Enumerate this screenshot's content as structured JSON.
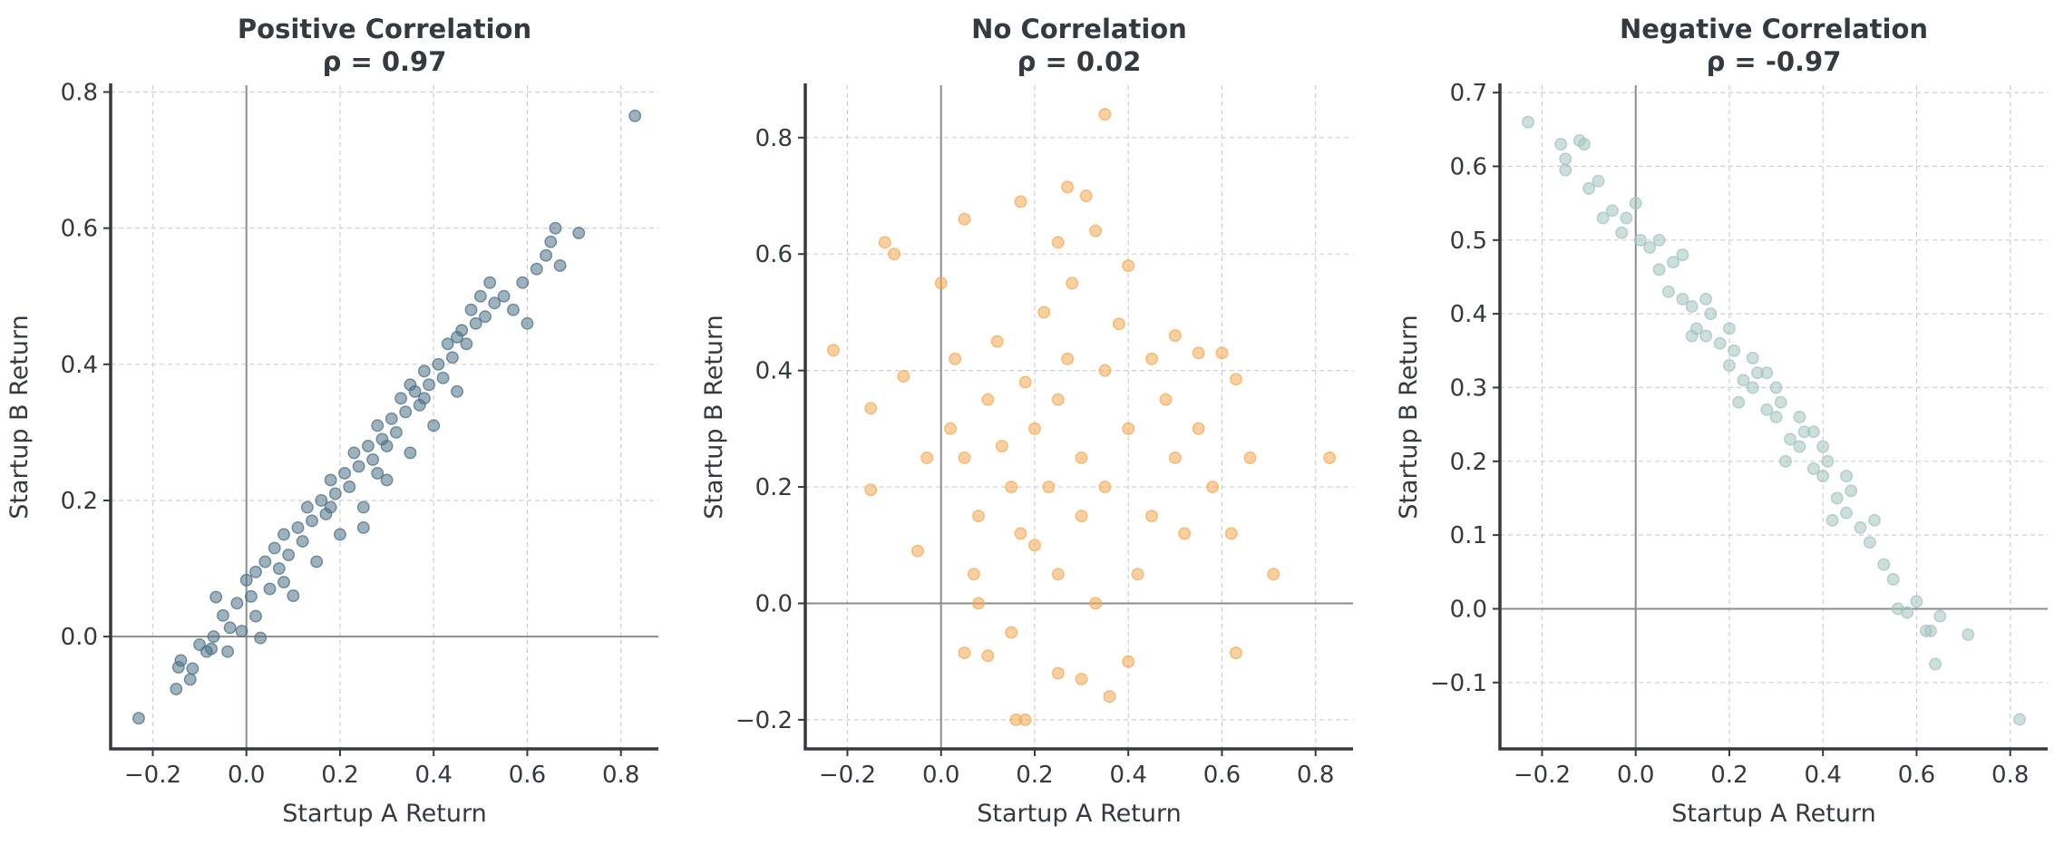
{
  "chart_data": [
    {
      "type": "scatter",
      "title": "Positive Correlation\nρ = 0.97",
      "xlabel": "Startup A Return",
      "ylabel": "Startup B Return",
      "xlim": [
        -0.29,
        0.88
      ],
      "ylim": [
        -0.165,
        0.81
      ],
      "xticks": [
        -0.2,
        0.0,
        0.2,
        0.4,
        0.6,
        0.8
      ],
      "xtick_labels": [
        "−0.2",
        "0.0",
        "0.2",
        "0.4",
        "0.6",
        "0.8"
      ],
      "yticks": [
        0.0,
        0.2,
        0.4,
        0.6,
        0.8
      ],
      "ytick_labels": [
        "0.0",
        "0.2",
        "0.4",
        "0.6",
        "0.8"
      ],
      "grid": true,
      "color": "#4e7386",
      "series": [
        {
          "points": [
            [
              -0.23,
              -0.12
            ],
            [
              -0.15,
              -0.077
            ],
            [
              -0.145,
              -0.045
            ],
            [
              -0.14,
              -0.035
            ],
            [
              -0.12,
              -0.063
            ],
            [
              -0.115,
              -0.047
            ],
            [
              -0.1,
              -0.012
            ],
            [
              -0.085,
              -0.022
            ],
            [
              -0.075,
              -0.018
            ],
            [
              -0.07,
              -0.0
            ],
            [
              -0.065,
              0.058
            ],
            [
              -0.05,
              0.031
            ],
            [
              -0.04,
              -0.022
            ],
            [
              -0.035,
              0.013
            ],
            [
              -0.02,
              0.049
            ],
            [
              -0.01,
              0.008
            ],
            [
              0.0,
              0.083
            ],
            [
              0.01,
              0.059
            ],
            [
              0.02,
              0.095
            ],
            [
              0.03,
              -0.002
            ],
            [
              0.04,
              0.11
            ],
            [
              0.05,
              0.07
            ],
            [
              0.06,
              0.13
            ],
            [
              0.07,
              0.1
            ],
            [
              0.08,
              0.15
            ],
            [
              0.09,
              0.12
            ],
            [
              0.1,
              0.06
            ],
            [
              0.11,
              0.16
            ],
            [
              0.12,
              0.14
            ],
            [
              0.13,
              0.19
            ],
            [
              0.14,
              0.17
            ],
            [
              0.15,
              0.11
            ],
            [
              0.16,
              0.2
            ],
            [
              0.17,
              0.18
            ],
            [
              0.18,
              0.23
            ],
            [
              0.19,
              0.21
            ],
            [
              0.2,
              0.15
            ],
            [
              0.21,
              0.24
            ],
            [
              0.22,
              0.22
            ],
            [
              0.23,
              0.27
            ],
            [
              0.24,
              0.25
            ],
            [
              0.25,
              0.19
            ],
            [
              0.26,
              0.28
            ],
            [
              0.27,
              0.26
            ],
            [
              0.28,
              0.31
            ],
            [
              0.29,
              0.29
            ],
            [
              0.3,
              0.23
            ],
            [
              0.31,
              0.32
            ],
            [
              0.32,
              0.3
            ],
            [
              0.33,
              0.35
            ],
            [
              0.34,
              0.33
            ],
            [
              0.35,
              0.27
            ],
            [
              0.36,
              0.36
            ],
            [
              0.37,
              0.34
            ],
            [
              0.38,
              0.39
            ],
            [
              0.39,
              0.37
            ],
            [
              0.4,
              0.31
            ],
            [
              0.41,
              0.4
            ],
            [
              0.42,
              0.38
            ],
            [
              0.43,
              0.43
            ],
            [
              0.44,
              0.41
            ],
            [
              0.45,
              0.36
            ],
            [
              0.46,
              0.45
            ],
            [
              0.47,
              0.43
            ],
            [
              0.48,
              0.48
            ],
            [
              0.49,
              0.46
            ],
            [
              0.5,
              0.5
            ],
            [
              0.51,
              0.47
            ],
            [
              0.52,
              0.52
            ],
            [
              0.53,
              0.49
            ],
            [
              0.55,
              0.5
            ],
            [
              0.57,
              0.48
            ],
            [
              0.59,
              0.52
            ],
            [
              0.6,
              0.46
            ],
            [
              0.62,
              0.54
            ],
            [
              0.64,
              0.56
            ],
            [
              0.65,
              0.58
            ],
            [
              0.66,
              0.6
            ],
            [
              0.67,
              0.545
            ],
            [
              0.71,
              0.593
            ],
            [
              0.83,
              0.765
            ],
            [
              0.25,
              0.16
            ],
            [
              0.35,
              0.37
            ],
            [
              0.45,
              0.44
            ],
            [
              0.3,
              0.28
            ],
            [
              0.18,
              0.19
            ],
            [
              0.08,
              0.08
            ],
            [
              0.02,
              0.03
            ],
            [
              0.28,
              0.24
            ],
            [
              0.38,
              0.35
            ]
          ]
        }
      ]
    },
    {
      "type": "scatter",
      "title": "No Correlation\nρ = 0.02",
      "xlabel": "Startup A Return",
      "ylabel": "Startup B Return",
      "xlim": [
        -0.29,
        0.88
      ],
      "ylim": [
        -0.25,
        0.89
      ],
      "xticks": [
        -0.2,
        0.0,
        0.2,
        0.4,
        0.6,
        0.8
      ],
      "xtick_labels": [
        "−0.2",
        "0.0",
        "0.2",
        "0.4",
        "0.6",
        "0.8"
      ],
      "yticks": [
        -0.2,
        0.0,
        0.2,
        0.4,
        0.6,
        0.8
      ],
      "ytick_labels": [
        "−0.2",
        "0.0",
        "0.2",
        "0.4",
        "0.6",
        "0.8"
      ],
      "grid": true,
      "color": "#f5a953",
      "series": [
        {
          "points": [
            [
              -0.23,
              0.435
            ],
            [
              -0.15,
              0.335
            ],
            [
              -0.15,
              0.195
            ],
            [
              -0.12,
              0.62
            ],
            [
              -0.1,
              0.6
            ],
            [
              -0.08,
              0.39
            ],
            [
              -0.05,
              0.09
            ],
            [
              -0.03,
              0.25
            ],
            [
              0.0,
              0.55
            ],
            [
              0.05,
              0.66
            ],
            [
              0.17,
              0.69
            ],
            [
              0.31,
              0.7
            ],
            [
              0.27,
              0.715
            ],
            [
              0.35,
              0.84
            ],
            [
              0.33,
              0.64
            ],
            [
              0.25,
              0.62
            ],
            [
              0.4,
              0.58
            ],
            [
              0.5,
              0.46
            ],
            [
              0.55,
              0.43
            ],
            [
              0.6,
              0.43
            ],
            [
              0.63,
              0.385
            ],
            [
              0.66,
              0.25
            ],
            [
              0.71,
              0.05
            ],
            [
              0.83,
              0.25
            ],
            [
              0.63,
              -0.085
            ],
            [
              0.3,
              -0.13
            ],
            [
              0.36,
              -0.16
            ],
            [
              0.4,
              -0.1
            ],
            [
              0.25,
              -0.12
            ],
            [
              0.18,
              -0.2
            ],
            [
              0.16,
              -0.2
            ],
            [
              0.05,
              -0.085
            ],
            [
              0.1,
              -0.09
            ],
            [
              0.08,
              0.0
            ],
            [
              0.15,
              -0.05
            ],
            [
              0.2,
              0.3
            ],
            [
              0.25,
              0.35
            ],
            [
              0.3,
              0.25
            ],
            [
              0.35,
              0.2
            ],
            [
              0.15,
              0.2
            ],
            [
              0.1,
              0.35
            ],
            [
              0.05,
              0.25
            ],
            [
              0.4,
              0.3
            ],
            [
              0.45,
              0.15
            ],
            [
              0.5,
              0.25
            ],
            [
              0.55,
              0.3
            ],
            [
              0.2,
              0.1
            ],
            [
              0.25,
              0.05
            ],
            [
              0.3,
              0.15
            ],
            [
              0.35,
              0.4
            ],
            [
              0.12,
              0.45
            ],
            [
              0.22,
              0.5
            ],
            [
              0.28,
              0.55
            ],
            [
              0.18,
              0.38
            ],
            [
              0.08,
              0.15
            ],
            [
              0.02,
              0.3
            ],
            [
              0.45,
              0.42
            ],
            [
              0.52,
              0.12
            ],
            [
              0.58,
              0.2
            ],
            [
              0.42,
              0.05
            ],
            [
              0.33,
              0.0
            ],
            [
              0.23,
              0.2
            ],
            [
              0.13,
              0.27
            ],
            [
              0.03,
              0.42
            ],
            [
              0.38,
              0.48
            ],
            [
              0.48,
              0.35
            ],
            [
              0.27,
              0.42
            ],
            [
              0.17,
              0.12
            ],
            [
              0.07,
              0.05
            ],
            [
              0.62,
              0.12
            ]
          ]
        }
      ]
    },
    {
      "type": "scatter",
      "title": "Negative Correlation\nρ = -0.97",
      "xlabel": "Startup A Return",
      "ylabel": "Startup B Return",
      "xlim": [
        -0.29,
        0.88
      ],
      "ylim": [
        -0.19,
        0.71
      ],
      "xticks": [
        -0.2,
        0.0,
        0.2,
        0.4,
        0.6,
        0.8
      ],
      "xtick_labels": [
        "−0.2",
        "0.0",
        "0.2",
        "0.4",
        "0.6",
        "0.8"
      ],
      "yticks": [
        -0.1,
        0.0,
        0.1,
        0.2,
        0.3,
        0.4,
        0.5,
        0.6,
        0.7
      ],
      "ytick_labels": [
        "−0.1",
        "0.0",
        "0.1",
        "0.2",
        "0.3",
        "0.4",
        "0.5",
        "0.6",
        "0.7"
      ],
      "grid": true,
      "color": "#a3c4bf",
      "series": [
        {
          "points": [
            [
              -0.23,
              0.66
            ],
            [
              -0.16,
              0.63
            ],
            [
              -0.15,
              0.61
            ],
            [
              -0.15,
              0.595
            ],
            [
              -0.12,
              0.635
            ],
            [
              -0.11,
              0.63
            ],
            [
              -0.1,
              0.57
            ],
            [
              -0.08,
              0.58
            ],
            [
              -0.07,
              0.53
            ],
            [
              -0.05,
              0.54
            ],
            [
              -0.03,
              0.51
            ],
            [
              -0.02,
              0.53
            ],
            [
              0.0,
              0.55
            ],
            [
              0.01,
              0.5
            ],
            [
              0.03,
              0.49
            ],
            [
              0.05,
              0.46
            ],
            [
              0.07,
              0.43
            ],
            [
              0.08,
              0.47
            ],
            [
              0.1,
              0.42
            ],
            [
              0.12,
              0.41
            ],
            [
              0.13,
              0.38
            ],
            [
              0.15,
              0.37
            ],
            [
              0.16,
              0.4
            ],
            [
              0.18,
              0.36
            ],
            [
              0.2,
              0.33
            ],
            [
              0.21,
              0.35
            ],
            [
              0.23,
              0.31
            ],
            [
              0.25,
              0.3
            ],
            [
              0.26,
              0.32
            ],
            [
              0.28,
              0.27
            ],
            [
              0.3,
              0.26
            ],
            [
              0.31,
              0.28
            ],
            [
              0.33,
              0.23
            ],
            [
              0.35,
              0.22
            ],
            [
              0.36,
              0.24
            ],
            [
              0.38,
              0.19
            ],
            [
              0.4,
              0.18
            ],
            [
              0.41,
              0.2
            ],
            [
              0.43,
              0.15
            ],
            [
              0.45,
              0.13
            ],
            [
              0.46,
              0.16
            ],
            [
              0.48,
              0.11
            ],
            [
              0.5,
              0.09
            ],
            [
              0.51,
              0.12
            ],
            [
              0.53,
              0.06
            ],
            [
              0.55,
              0.04
            ],
            [
              0.56,
              0.0
            ],
            [
              0.58,
              -0.005
            ],
            [
              0.6,
              0.01
            ],
            [
              0.62,
              -0.03
            ],
            [
              0.63,
              -0.03
            ],
            [
              0.64,
              -0.075
            ],
            [
              0.65,
              -0.01
            ],
            [
              0.71,
              -0.035
            ],
            [
              0.82,
              -0.15
            ],
            [
              0.1,
              0.48
            ],
            [
              0.2,
              0.38
            ],
            [
              0.3,
              0.3
            ],
            [
              0.4,
              0.22
            ],
            [
              0.15,
              0.42
            ],
            [
              0.25,
              0.34
            ],
            [
              0.35,
              0.26
            ],
            [
              0.45,
              0.18
            ],
            [
              0.05,
              0.5
            ],
            [
              0.22,
              0.28
            ],
            [
              0.32,
              0.2
            ],
            [
              0.42,
              0.12
            ],
            [
              0.12,
              0.37
            ],
            [
              0.28,
              0.32
            ],
            [
              0.38,
              0.24
            ]
          ]
        }
      ]
    }
  ]
}
